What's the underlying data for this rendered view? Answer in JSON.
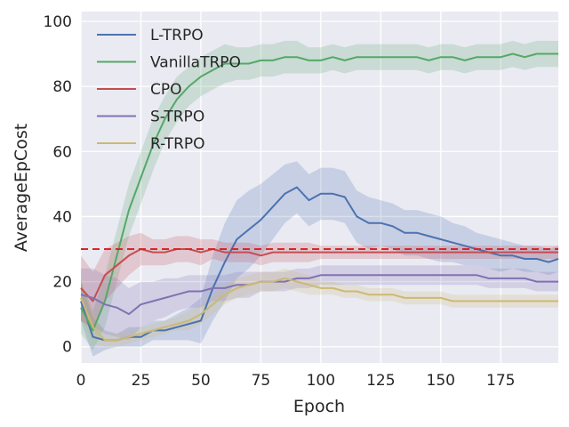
{
  "chart_data": {
    "type": "line",
    "title": "",
    "xlabel": "Epoch",
    "ylabel": "AverageEpCost",
    "xlim": [
      0,
      199
    ],
    "ylim": [
      -5,
      103
    ],
    "xticks": [
      0,
      25,
      50,
      75,
      100,
      125,
      150,
      175
    ],
    "yticks": [
      0,
      20,
      40,
      60,
      80,
      100
    ],
    "grid": true,
    "legend_position": "top-left",
    "threshold": {
      "value": 30,
      "color": "#d62728",
      "style": "dashed"
    },
    "series": [
      {
        "name": "L-TRPO",
        "color": "#4c72b0",
        "x": [
          0,
          5,
          10,
          15,
          20,
          25,
          30,
          35,
          40,
          45,
          50,
          55,
          60,
          65,
          70,
          75,
          80,
          85,
          90,
          95,
          100,
          105,
          110,
          115,
          120,
          125,
          130,
          135,
          140,
          145,
          150,
          155,
          160,
          165,
          170,
          175,
          180,
          185,
          190,
          195,
          199
        ],
        "y": [
          14,
          3,
          2,
          2,
          3,
          3,
          5,
          5,
          6,
          7,
          8,
          18,
          26,
          33,
          36,
          39,
          43,
          47,
          49,
          45,
          47,
          47,
          46,
          40,
          38,
          38,
          37,
          35,
          35,
          34,
          33,
          32,
          31,
          30,
          29,
          28,
          28,
          27,
          27,
          26,
          27
        ],
        "band": [
          6,
          6,
          3,
          2,
          3,
          3,
          3,
          3,
          4,
          5,
          7,
          10,
          12,
          12,
          12,
          11,
          10,
          9,
          8,
          8,
          8,
          8,
          8,
          8,
          8,
          7,
          7,
          7,
          7,
          7,
          7,
          6,
          6,
          5,
          5,
          5,
          4,
          4,
          4,
          4,
          4
        ]
      },
      {
        "name": "VanillaTRPO",
        "color": "#55a868",
        "x": [
          0,
          5,
          10,
          15,
          20,
          25,
          30,
          35,
          40,
          45,
          50,
          55,
          60,
          65,
          70,
          75,
          80,
          85,
          90,
          95,
          100,
          105,
          110,
          115,
          120,
          125,
          130,
          135,
          140,
          145,
          150,
          155,
          160,
          165,
          170,
          175,
          180,
          185,
          190,
          195,
          199
        ],
        "y": [
          12,
          5,
          14,
          28,
          42,
          52,
          62,
          70,
          76,
          80,
          83,
          85,
          87,
          87,
          87,
          88,
          88,
          89,
          89,
          88,
          88,
          89,
          88,
          89,
          89,
          89,
          89,
          89,
          89,
          88,
          89,
          89,
          88,
          89,
          89,
          89,
          90,
          89,
          90,
          90,
          90
        ],
        "band": [
          8,
          6,
          8,
          8,
          8,
          8,
          8,
          7,
          7,
          6,
          6,
          6,
          6,
          5,
          5,
          5,
          5,
          5,
          5,
          4,
          4,
          4,
          4,
          4,
          4,
          4,
          4,
          4,
          4,
          4,
          4,
          4,
          4,
          4,
          4,
          4,
          4,
          4,
          4,
          4,
          4
        ]
      },
      {
        "name": "CPO",
        "color": "#c44e52",
        "x": [
          0,
          5,
          10,
          15,
          20,
          25,
          30,
          35,
          40,
          45,
          50,
          55,
          60,
          65,
          70,
          75,
          80,
          85,
          90,
          95,
          100,
          105,
          110,
          115,
          120,
          125,
          130,
          135,
          140,
          145,
          150,
          155,
          160,
          165,
          170,
          175,
          180,
          185,
          190,
          195,
          199
        ],
        "y": [
          18,
          14,
          22,
          25,
          28,
          30,
          29,
          29,
          30,
          30,
          29,
          30,
          29,
          29,
          29,
          28,
          29,
          29,
          29,
          29,
          29,
          29,
          29,
          29,
          29,
          29,
          29,
          29,
          29,
          29,
          29,
          29,
          29,
          29,
          29,
          29,
          29,
          29,
          29,
          29,
          29
        ],
        "band": [
          10,
          9,
          8,
          7,
          6,
          5,
          4,
          4,
          4,
          4,
          4,
          3,
          3,
          3,
          3,
          3,
          3,
          3,
          3,
          3,
          2,
          2,
          2,
          2,
          2,
          2,
          2,
          2,
          2,
          2,
          2,
          2,
          2,
          2,
          2,
          2,
          2,
          2,
          2,
          2,
          2
        ]
      },
      {
        "name": "S-TRPO",
        "color": "#8172b2",
        "x": [
          0,
          5,
          10,
          15,
          20,
          25,
          30,
          35,
          40,
          45,
          50,
          55,
          60,
          65,
          70,
          75,
          80,
          85,
          90,
          95,
          100,
          105,
          110,
          115,
          120,
          125,
          130,
          135,
          140,
          145,
          150,
          155,
          160,
          165,
          170,
          175,
          180,
          185,
          190,
          195,
          199
        ],
        "y": [
          16,
          15,
          13,
          12,
          10,
          13,
          14,
          15,
          16,
          17,
          17,
          18,
          18,
          19,
          19,
          20,
          20,
          20,
          21,
          21,
          22,
          22,
          22,
          22,
          22,
          22,
          22,
          22,
          22,
          22,
          22,
          22,
          22,
          22,
          21,
          21,
          21,
          21,
          20,
          20,
          20
        ],
        "band": [
          8,
          9,
          9,
          9,
          8,
          7,
          6,
          6,
          5,
          5,
          5,
          4,
          4,
          4,
          4,
          3,
          3,
          3,
          3,
          3,
          3,
          3,
          3,
          3,
          3,
          3,
          3,
          3,
          3,
          3,
          3,
          3,
          3,
          3,
          3,
          3,
          3,
          3,
          3,
          3,
          3
        ]
      },
      {
        "name": "R-TRPO",
        "color": "#ccb974",
        "x": [
          0,
          5,
          10,
          15,
          20,
          25,
          30,
          35,
          40,
          45,
          50,
          55,
          60,
          65,
          70,
          75,
          80,
          85,
          90,
          95,
          100,
          105,
          110,
          115,
          120,
          125,
          130,
          135,
          140,
          145,
          150,
          155,
          160,
          165,
          170,
          175,
          180,
          185,
          190,
          195,
          199
        ],
        "y": [
          15,
          6,
          2,
          2,
          3,
          4,
          5,
          6,
          7,
          8,
          10,
          13,
          16,
          18,
          19,
          20,
          20,
          21,
          20,
          19,
          18,
          18,
          17,
          17,
          16,
          16,
          16,
          15,
          15,
          15,
          15,
          14,
          14,
          14,
          14,
          14,
          14,
          14,
          14,
          14,
          14
        ],
        "band": [
          6,
          5,
          2,
          2,
          2,
          2,
          2,
          2,
          2,
          3,
          3,
          3,
          3,
          3,
          3,
          3,
          3,
          3,
          3,
          3,
          2,
          2,
          2,
          2,
          2,
          2,
          2,
          2,
          2,
          2,
          2,
          2,
          2,
          2,
          2,
          2,
          2,
          2,
          2,
          2,
          2
        ]
      }
    ]
  }
}
